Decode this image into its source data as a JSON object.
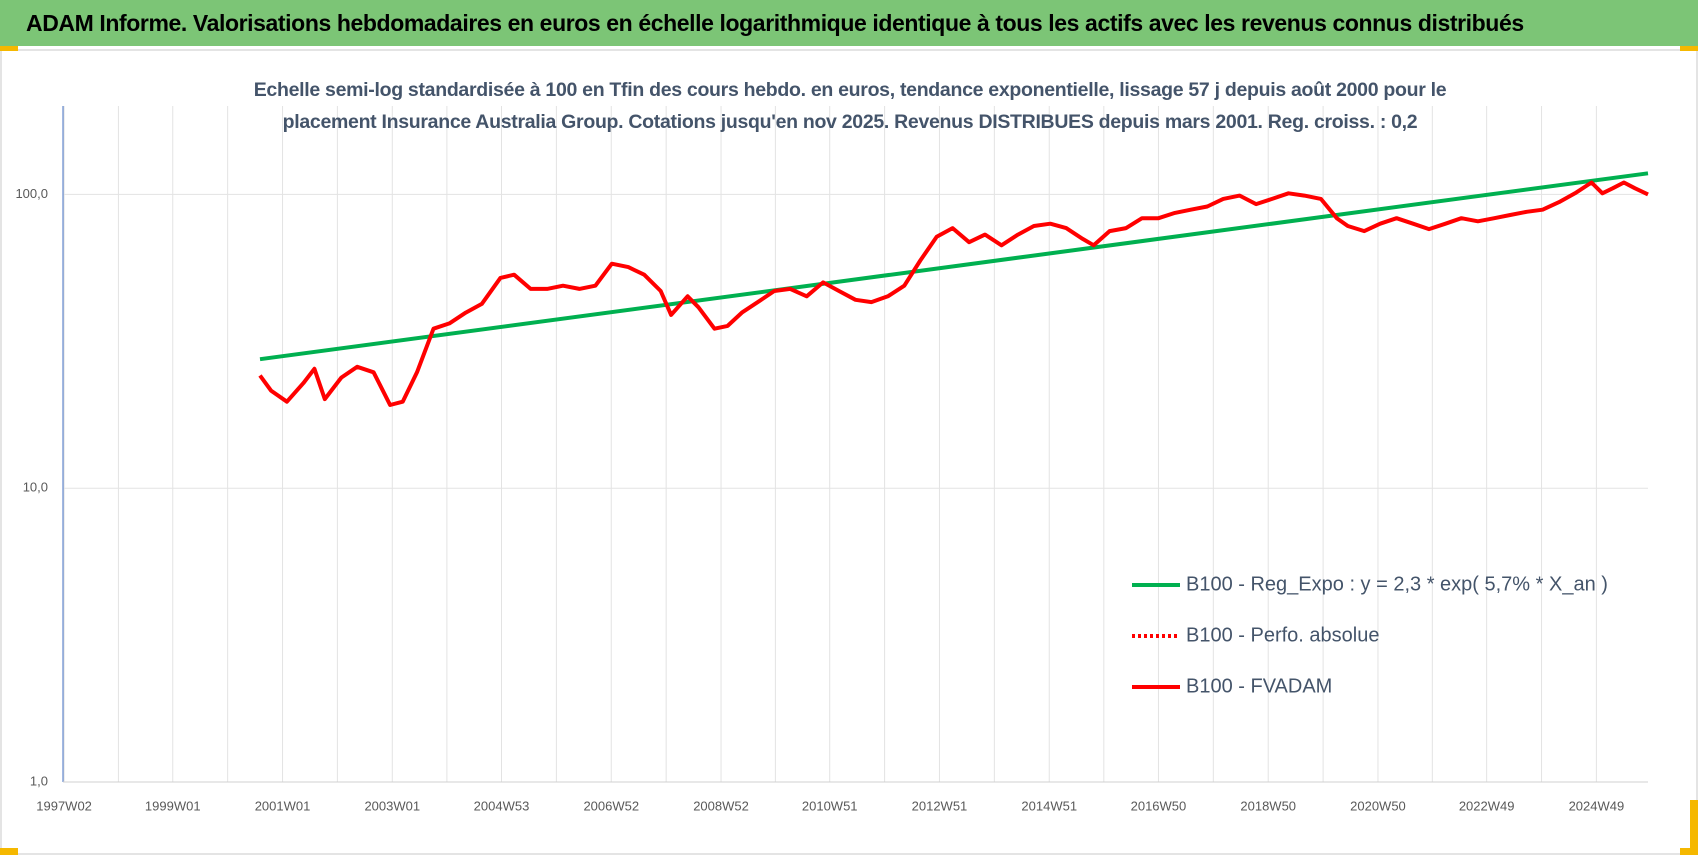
{
  "chart_data": {
    "type": "line",
    "title": "ADAM Informe. Valorisations hebdomadaires en euros en échelle logarithmique identique à tous les actifs avec les revenus connus distribués",
    "subtitle": "Echelle semi-log standardisée à 100 en Tfin des cours hebdo. en euros, tendance exponentielle, lissage 57 j depuis août 2000 pour le placement Insurance Australia Group. Cotations jusqu'en nov 2025. Revenus DISTRIBUES depuis mars 2001. Reg. croiss. : 0,2",
    "log_scale_y": true,
    "grid": true,
    "legend": "right",
    "xlim": [
      1997.0,
      2025.88
    ],
    "ylim": [
      1,
      200
    ],
    "yticks": [
      {
        "value": 1,
        "label": "1,0"
      },
      {
        "value": 10,
        "label": "10,0"
      },
      {
        "value": 100,
        "label": "100,0"
      }
    ],
    "xticks": [
      {
        "value": 1997.02,
        "label": "1997W02"
      },
      {
        "value": 1999.0,
        "label": "1999W01"
      },
      {
        "value": 2001.0,
        "label": "2001W01"
      },
      {
        "value": 2003.0,
        "label": "2003W01"
      },
      {
        "value": 2004.99,
        "label": "2004W53"
      },
      {
        "value": 2006.99,
        "label": "2006W52"
      },
      {
        "value": 2008.99,
        "label": "2008W52"
      },
      {
        "value": 2010.97,
        "label": "2010W51"
      },
      {
        "value": 2012.97,
        "label": "2012W51"
      },
      {
        "value": 2014.97,
        "label": "2014W51"
      },
      {
        "value": 2016.96,
        "label": "2016W50"
      },
      {
        "value": 2018.96,
        "label": "2018W50"
      },
      {
        "value": 2020.96,
        "label": "2020W50"
      },
      {
        "value": 2022.94,
        "label": "2022W49"
      },
      {
        "value": 2024.94,
        "label": "2024W49"
      }
    ],
    "series": [
      {
        "name": "B100 - Reg_Expo : y = 2,3 * exp( 5,7% *  X_an )",
        "color": "#00b050",
        "dashed": false,
        "x": [
          2000.59,
          2025.88
        ],
        "values": [
          27.5,
          118
        ]
      },
      {
        "name": "B100 - Perfo. absolue",
        "color": "#ff0000",
        "dashed": true,
        "x": [],
        "values": []
      },
      {
        "name": "B100 - FVADAM",
        "color": "#ff0000",
        "dashed": false,
        "x": [
          2000.59,
          2000.79,
          2001.08,
          2001.38,
          2001.58,
          2001.77,
          2002.07,
          2002.36,
          2002.66,
          2002.96,
          2003.19,
          2003.45,
          2003.75,
          2004.04,
          2004.34,
          2004.63,
          2004.97,
          2005.22,
          2005.52,
          2005.82,
          2006.11,
          2006.41,
          2006.7,
          2007.0,
          2007.3,
          2007.59,
          2007.89,
          2008.08,
          2008.38,
          2008.58,
          2008.87,
          2009.11,
          2009.37,
          2009.66,
          2009.96,
          2010.25,
          2010.55,
          2010.85,
          2011.14,
          2011.44,
          2011.73,
          2012.03,
          2012.33,
          2012.62,
          2012.92,
          2013.21,
          2013.51,
          2013.8,
          2014.1,
          2014.4,
          2014.69,
          2014.99,
          2015.28,
          2015.58,
          2015.78,
          2016.07,
          2016.37,
          2016.66,
          2016.96,
          2017.26,
          2017.55,
          2017.85,
          2018.14,
          2018.44,
          2018.74,
          2019.03,
          2019.33,
          2019.62,
          2019.92,
          2020.21,
          2020.41,
          2020.71,
          2021.0,
          2021.3,
          2021.6,
          2021.89,
          2022.19,
          2022.48,
          2022.78,
          2023.08,
          2023.37,
          2023.67,
          2023.96,
          2024.26,
          2024.55,
          2024.85,
          2025.05,
          2025.24,
          2025.44,
          2025.64,
          2025.88
        ],
        "values": [
          24.2,
          21.5,
          19.7,
          22.8,
          25.5,
          20.1,
          23.8,
          25.9,
          24.8,
          19.2,
          19.7,
          24.8,
          34.9,
          36.4,
          39.6,
          42.4,
          52.0,
          53.3,
          47.7,
          47.7,
          48.9,
          47.7,
          48.9,
          58.1,
          56.6,
          53.3,
          46.9,
          38.9,
          45,
          41.3,
          34.9,
          35.7,
          39.6,
          43,
          46.9,
          47.7,
          45,
          50.2,
          46.9,
          43.8,
          43,
          45,
          48.9,
          59.6,
          71.8,
          76.8,
          68.8,
          73,
          67.1,
          73,
          78.1,
          79.5,
          76.8,
          70.6,
          67.1,
          75,
          76.8,
          83,
          83,
          86.5,
          88.7,
          91,
          96.6,
          99.1,
          92.7,
          96.6,
          100.9,
          99.1,
          96.6,
          83,
          78.1,
          75,
          79.5,
          83,
          79.5,
          76.2,
          79.5,
          83,
          81,
          83,
          85.1,
          87.3,
          88.7,
          94.2,
          100.9,
          109.8,
          100.9,
          105,
          109.8,
          105,
          100
        ]
      }
    ]
  }
}
